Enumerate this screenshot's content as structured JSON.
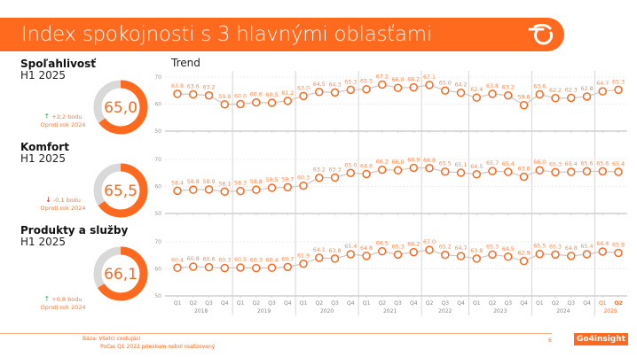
{
  "header": {
    "title": "Index spokojnosti s 3 hlavnými oblasťami",
    "logo_icon": "swoosh-logo-icon"
  },
  "trend_label": "Trend",
  "colors": {
    "accent": "#ff6a1f",
    "donut_track": "#d9d9d9",
    "line": "#c8c8c8",
    "up": "#2bb24c",
    "down": "#e0261b"
  },
  "sections": [
    {
      "title": "Spoľahlivosť",
      "period": "H1 2025",
      "value": 65.0,
      "value_label": "65,0",
      "delta_arrow": "up",
      "delta_label": "+2,2 bodu",
      "delta_caption": "Oproti rok 2024"
    },
    {
      "title": "Komfort",
      "period": "H1 2025",
      "value": 65.5,
      "value_label": "65,5",
      "delta_arrow": "down",
      "delta_label": "-0,1 bodu",
      "delta_caption": "Oproti rok 2024"
    },
    {
      "title": "Produkty a služby",
      "period": "H1 2025",
      "value": 66.1,
      "value_label": "66,1",
      "delta_arrow": "up",
      "delta_label": "+0,8 bodu",
      "delta_caption": "Oproti rok 2024"
    }
  ],
  "chart_data": {
    "type": "line",
    "title": "Trend",
    "ylim": [
      50,
      70
    ],
    "yticks": [
      50,
      60,
      70
    ],
    "x": [
      "Q1",
      "Q2",
      "Q3",
      "Q4",
      "Q1",
      "Q2",
      "Q3",
      "Q4",
      "Q1",
      "Q2",
      "Q3",
      "Q4",
      "Q1",
      "Q2",
      "Q3",
      "Q4",
      "Q2",
      "Q3",
      "Q4",
      "Q1",
      "Q2",
      "Q3",
      "Q4",
      "Q1",
      "Q2",
      "Q3",
      "Q4",
      "Q1",
      "Q2"
    ],
    "years": [
      {
        "label": "2018",
        "count": 4
      },
      {
        "label": "2019",
        "count": 4
      },
      {
        "label": "2020",
        "count": 4
      },
      {
        "label": "2021",
        "count": 4
      },
      {
        "label": "2022",
        "count": 3
      },
      {
        "label": "2023",
        "count": 4
      },
      {
        "label": "2024",
        "count": 4
      },
      {
        "label": "2025",
        "count": 2
      }
    ],
    "highlight_year": "2025",
    "series": [
      {
        "name": "Spoľahlivosť",
        "values": [
          63.8,
          63.6,
          63.2,
          59.9,
          60.0,
          60.6,
          60.5,
          61.2,
          63.0,
          64.5,
          64.3,
          65.3,
          65.5,
          67.2,
          66.0,
          66.2,
          67.1,
          65.0,
          64.2,
          62.4,
          63.8,
          63.2,
          59.6,
          63.6,
          62.2,
          62.3,
          62.8,
          64.7,
          65.3
        ]
      },
      {
        "name": "Komfort",
        "values": [
          58.4,
          58.8,
          58.9,
          58.1,
          58.3,
          58.8,
          59.5,
          59.7,
          60.3,
          63.2,
          63.3,
          65.0,
          64.6,
          66.2,
          66.0,
          66.9,
          66.8,
          65.5,
          65.1,
          64.5,
          65.7,
          65.4,
          63.6,
          66.0,
          65.3,
          65.4,
          65.6,
          65.6,
          65.4
        ]
      },
      {
        "name": "Produkty a služby",
        "values": [
          60.4,
          60.8,
          60.6,
          60.3,
          60.5,
          60.3,
          60.4,
          60.7,
          61.9,
          64.1,
          63.8,
          65.4,
          64.8,
          66.5,
          65.3,
          66.2,
          67.0,
          65.2,
          64.7,
          63.8,
          65.3,
          64.5,
          62.9,
          65.5,
          65.3,
          64.8,
          65.4,
          66.4,
          65.9
        ]
      }
    ]
  },
  "footer": {
    "base": "Báza: Všetci cestujúci",
    "note": "Počas Q1 2022 prieskum nebol realizovaný",
    "page": "6",
    "brand": "Go4insight"
  }
}
